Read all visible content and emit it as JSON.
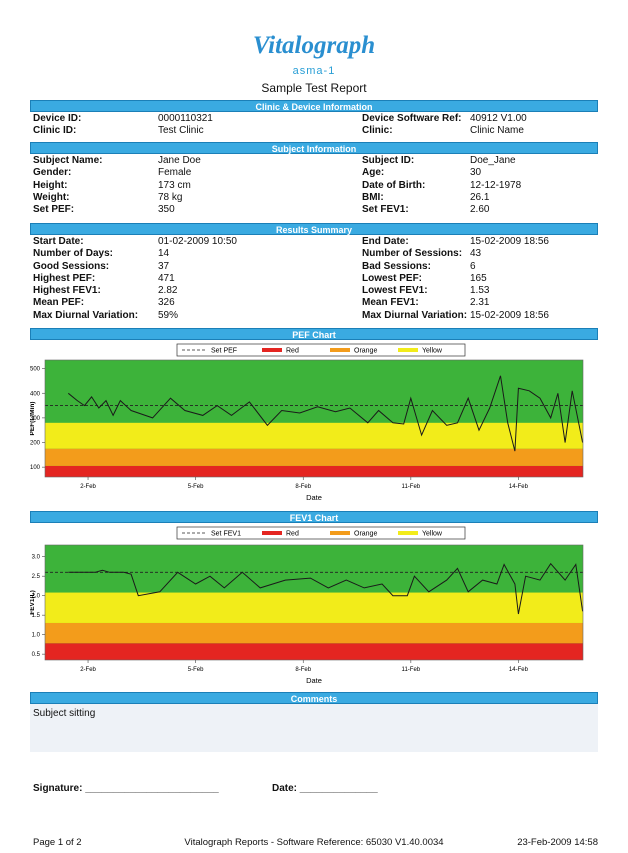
{
  "header": {
    "logo": "Vitalograph",
    "subtitle": "asma-1",
    "title": "Sample Test Report"
  },
  "sections": [
    {
      "title": "Clinic & Device Information",
      "rows": [
        [
          "Device ID:",
          "0000110321",
          "Device Software Ref:",
          "40912 V1.00"
        ],
        [
          "Clinic ID:",
          "Test Clinic",
          "Clinic:",
          "Clinic Name"
        ]
      ]
    },
    {
      "title": "Subject Information",
      "rows": [
        [
          "Subject Name:",
          "Jane Doe",
          "Subject ID:",
          "Doe_Jane"
        ],
        [
          "Gender:",
          "Female",
          "Age:",
          "30"
        ],
        [
          "Height:",
          "173 cm",
          "Date of Birth:",
          "12-12-1978"
        ],
        [
          "Weight:",
          "78 kg",
          "BMI:",
          "26.1"
        ],
        [
          "Set PEF:",
          "350",
          "Set FEV1:",
          "2.60"
        ]
      ]
    },
    {
      "title": "Results Summary",
      "rows": [
        [
          "Start Date:",
          "01-02-2009 10:50",
          "End Date:",
          "15-02-2009 18:56"
        ],
        [
          "Number of Days:",
          "14",
          "Number of Sessions:",
          "43"
        ],
        [
          "Good Sessions:",
          "37",
          "Bad Sessions:",
          "6"
        ],
        [
          "Highest PEF:",
          "471",
          "Lowest PEF:",
          "165"
        ],
        [
          "Highest FEV1:",
          "2.82",
          "Lowest FEV1:",
          "1.53"
        ],
        [
          "Mean PEF:",
          "326",
          "Mean FEV1:",
          "2.31"
        ],
        [
          "Max Diurnal Variation:",
          "59%",
          "Max Diurnal Variation:",
          "15-02-2009 18:56"
        ]
      ]
    }
  ],
  "chart_data": [
    {
      "type": "line",
      "title": "PEF Chart",
      "y_label": "PEF(L/Min)",
      "x_label": "Date",
      "background": "#3db33a",
      "color": "#1a1a1a",
      "reference": {
        "name": "Set PEF",
        "value": 350
      },
      "zones": [
        {
          "name": "Red",
          "color": "#e42521",
          "from": 60,
          "to": 105
        },
        {
          "name": "Orange",
          "color": "#f39c1b",
          "from": 105,
          "to": 175
        },
        {
          "name": "Yellow",
          "color": "#f2ec1a",
          "from": 175,
          "to": 280
        }
      ],
      "xlim": [
        0.8,
        15.8
      ],
      "xticks": [
        {
          "value": 2,
          "label": "2-Feb"
        },
        {
          "value": 5,
          "label": "5-Feb"
        },
        {
          "value": 8,
          "label": "8-Feb"
        },
        {
          "value": 11,
          "label": "11-Feb"
        },
        {
          "value": 14,
          "label": "14-Feb"
        }
      ],
      "ylim": [
        60,
        535
      ],
      "yticks": [
        100,
        200,
        300,
        400,
        500
      ],
      "x": [
        1.45,
        1.7,
        1.9,
        2.1,
        2.3,
        2.5,
        2.7,
        2.9,
        3.2,
        3.8,
        4.3,
        4.7,
        5.2,
        5.6,
        6.0,
        6.5,
        7.0,
        7.4,
        7.9,
        8.4,
        8.9,
        9.3,
        9.8,
        10.1,
        10.5,
        10.8,
        11.0,
        11.3,
        11.6,
        12.0,
        12.3,
        12.6,
        12.9,
        13.2,
        13.5,
        13.7,
        13.9,
        14.0,
        14.3,
        14.6,
        14.9,
        15.1,
        15.3,
        15.5,
        15.79
      ],
      "values": [
        400,
        370,
        350,
        385,
        340,
        370,
        310,
        370,
        330,
        300,
        380,
        330,
        310,
        350,
        310,
        365,
        270,
        330,
        320,
        345,
        325,
        340,
        280,
        330,
        280,
        275,
        380,
        230,
        330,
        270,
        280,
        380,
        250,
        340,
        471,
        280,
        165,
        420,
        410,
        380,
        300,
        400,
        200,
        410,
        200
      ]
    },
    {
      "type": "line",
      "title": "FEV1 Chart",
      "y_label": "FEV1(L)",
      "x_label": "Date",
      "background": "#3db33a",
      "color": "#1a1a1a",
      "reference": {
        "name": "Set FEV1",
        "value": 2.6
      },
      "zones": [
        {
          "name": "Red",
          "color": "#e42521",
          "from": 0.35,
          "to": 0.78
        },
        {
          "name": "Orange",
          "color": "#f39c1b",
          "from": 0.78,
          "to": 1.3
        },
        {
          "name": "Yellow",
          "color": "#f2ec1a",
          "from": 1.3,
          "to": 2.08
        }
      ],
      "xlim": [
        0.8,
        15.8
      ],
      "xticks": [
        {
          "value": 2,
          "label": "2-Feb"
        },
        {
          "value": 5,
          "label": "5-Feb"
        },
        {
          "value": 8,
          "label": "8-Feb"
        },
        {
          "value": 11,
          "label": "11-Feb"
        },
        {
          "value": 14,
          "label": "14-Feb"
        }
      ],
      "ylim": [
        0.35,
        3.3
      ],
      "yticks": [
        0.5,
        {
          "value": 1,
          "label": "1.0"
        },
        1.5,
        {
          "value": 2,
          "label": "2.0"
        },
        2.5,
        {
          "value": 3,
          "label": "3.0"
        }
      ],
      "x": [
        1.45,
        1.9,
        2.2,
        2.4,
        2.6,
        3.0,
        3.2,
        3.4,
        4.0,
        4.5,
        5.0,
        5.4,
        5.8,
        6.3,
        6.8,
        7.5,
        8.2,
        8.7,
        9.2,
        9.7,
        10.2,
        10.5,
        10.9,
        11.1,
        11.5,
        12.0,
        12.3,
        12.6,
        13.0,
        13.4,
        13.6,
        13.9,
        14.0,
        14.2,
        14.6,
        14.9,
        15.3,
        15.6,
        15.79
      ],
      "values": [
        2.6,
        2.6,
        2.6,
        2.65,
        2.6,
        2.6,
        2.55,
        2.0,
        2.1,
        2.6,
        2.3,
        2.5,
        2.2,
        2.6,
        2.2,
        2.4,
        2.45,
        2.2,
        2.4,
        2.2,
        2.3,
        2.0,
        2.0,
        2.5,
        2.1,
        2.4,
        2.7,
        2.1,
        2.4,
        2.3,
        2.8,
        2.3,
        1.53,
        2.5,
        2.4,
        2.82,
        2.4,
        2.8,
        1.6
      ]
    }
  ],
  "comments": {
    "title": "Comments",
    "text": "Subject sitting"
  },
  "signature": {
    "signature_label": "Signature: ________________________",
    "date_label": "Date: ______________"
  },
  "footer": {
    "page": "Page 1 of 2",
    "reference": "Vitalograph Reports - Software Reference: 65030 V1.40.0034",
    "date": "23-Feb-2009 14:58"
  }
}
